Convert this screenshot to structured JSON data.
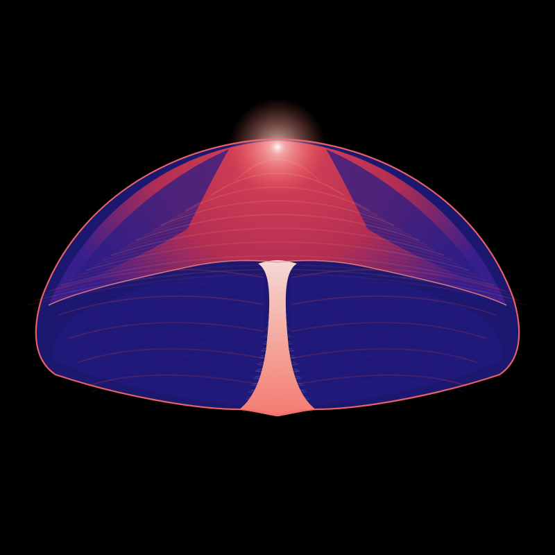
{
  "artwork": {
    "subject": "strange-attractor",
    "colors": {
      "background": "#000000",
      "deep_blue": "#1a1a6e",
      "violet": "#3a1f8f",
      "red": "#e0394a",
      "salmon": "#ff8a78",
      "highlight": "#ffe8e4"
    }
  }
}
